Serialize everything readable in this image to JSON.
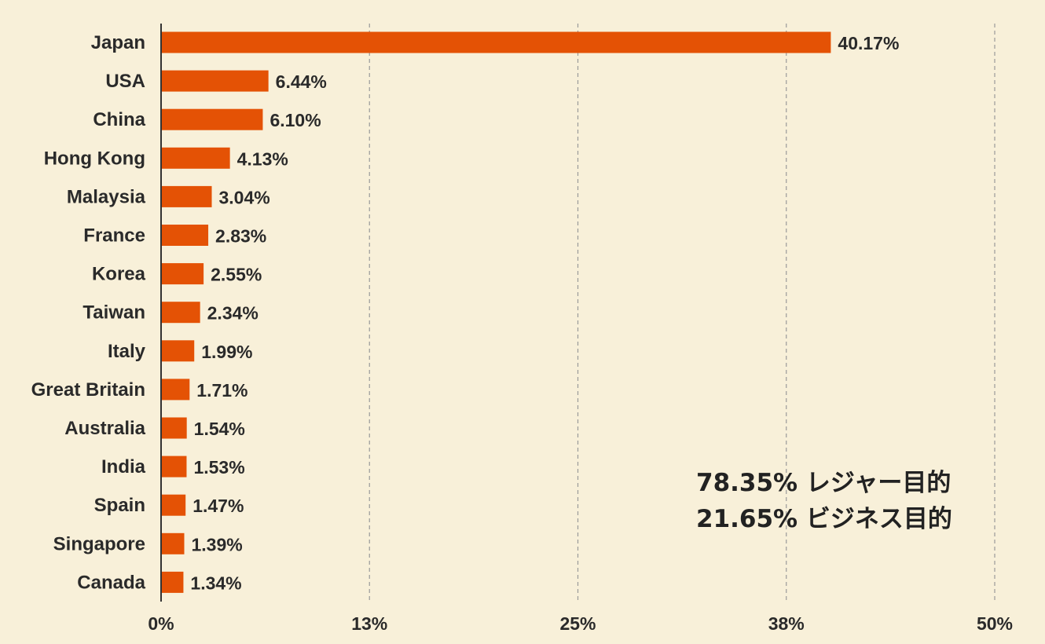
{
  "chart_data": {
    "type": "bar",
    "orientation": "horizontal",
    "categories": [
      "Japan",
      "USA",
      "China",
      "Hong Kong",
      "Malaysia",
      "France",
      "Korea",
      "Taiwan",
      "Italy",
      "Great Britain",
      "Australia",
      "India",
      "Spain",
      "Singapore",
      "Canada"
    ],
    "values": [
      40.17,
      6.44,
      6.1,
      4.13,
      3.04,
      2.83,
      2.55,
      2.34,
      1.99,
      1.71,
      1.54,
      1.53,
      1.47,
      1.39,
      1.34
    ],
    "value_labels": [
      "40.17%",
      "6.44%",
      "6.10%",
      "4.13%",
      "3.04%",
      "2.83%",
      "2.55%",
      "2.34%",
      "1.99%",
      "1.71%",
      "1.54%",
      "1.53%",
      "1.47%",
      "1.39%",
      "1.34%"
    ],
    "xlim": [
      0,
      50
    ],
    "x_ticks": [
      0,
      12.5,
      25,
      37.5,
      50
    ],
    "x_tick_labels": [
      "0%",
      "13%",
      "25%",
      "38%",
      "50%"
    ],
    "grid": "vertical dashed",
    "bar_color": "#e45205",
    "annotations": [
      "78.35% レジャー目的",
      "21.65% ビジネス目的"
    ]
  },
  "colors": {
    "background": "#f8f0d9",
    "bar": "#e45205",
    "text": "#2a2a2a",
    "grid": "#9a9a9a"
  }
}
